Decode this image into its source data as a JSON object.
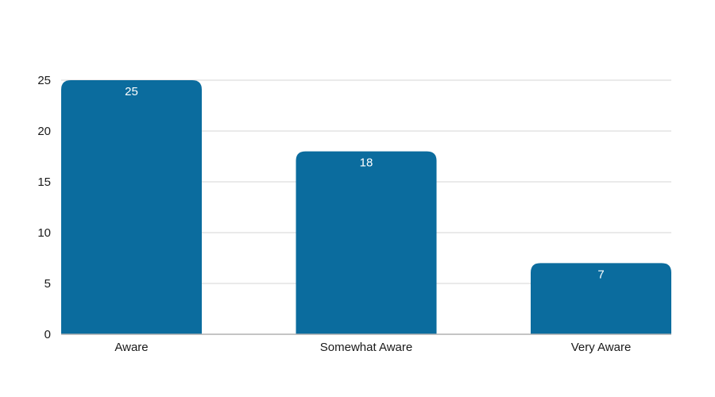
{
  "chart_data": {
    "type": "bar",
    "categories": [
      "Aware",
      "Somewhat Aware",
      "Very Aware"
    ],
    "values": [
      25,
      18,
      7
    ],
    "title": "",
    "xlabel": "",
    "ylabel": "",
    "ylim": [
      0,
      25
    ],
    "yticks": [
      0,
      5,
      10,
      15,
      20,
      25
    ],
    "grid": true,
    "legend": "none",
    "bar_color": "#0b6c9e",
    "data_labels": true
  }
}
